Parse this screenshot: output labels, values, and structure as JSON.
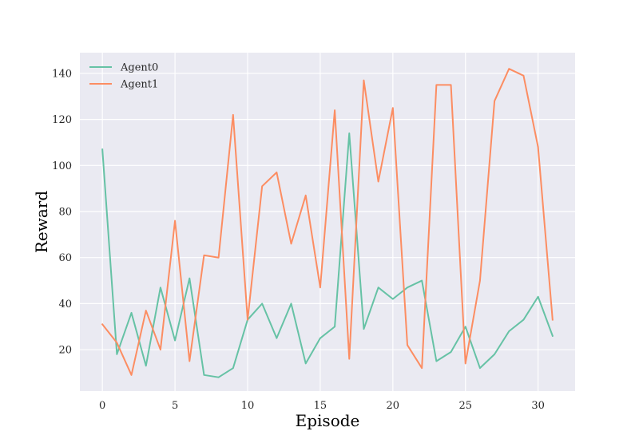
{
  "chart_data": {
    "type": "line",
    "xlabel": "Episode",
    "ylabel": "Reward",
    "xlim": [
      -1.55,
      32.55
    ],
    "ylim": [
      2,
      149
    ],
    "xticks": [
      0,
      5,
      10,
      15,
      20,
      25,
      30
    ],
    "yticks": [
      20,
      40,
      60,
      80,
      100,
      120,
      140
    ],
    "grid": true,
    "background": "#eaeaf2",
    "legend_position": "top-left",
    "x": [
      0,
      1,
      2,
      3,
      4,
      5,
      6,
      7,
      8,
      9,
      10,
      11,
      12,
      13,
      14,
      15,
      16,
      17,
      18,
      19,
      20,
      21,
      22,
      23,
      24,
      25,
      26,
      27,
      28,
      29,
      30,
      31
    ],
    "series": [
      {
        "name": "Agent0",
        "color": "#66c2a5",
        "values": [
          107,
          18,
          36,
          13,
          47,
          24,
          51,
          9,
          8,
          12,
          33,
          40,
          25,
          40,
          14,
          25,
          30,
          114,
          29,
          47,
          42,
          47,
          50,
          15,
          19,
          30,
          12,
          18,
          28,
          33,
          43,
          26
        ]
      },
      {
        "name": "Agent1",
        "color": "#fc8d62",
        "values": [
          31,
          23,
          9,
          37,
          20,
          76,
          15,
          61,
          60,
          122,
          33,
          91,
          97,
          66,
          87,
          47,
          124,
          16,
          137,
          93,
          125,
          22,
          12,
          135,
          135,
          14,
          50,
          128,
          142,
          139,
          108,
          33
        ]
      }
    ]
  }
}
